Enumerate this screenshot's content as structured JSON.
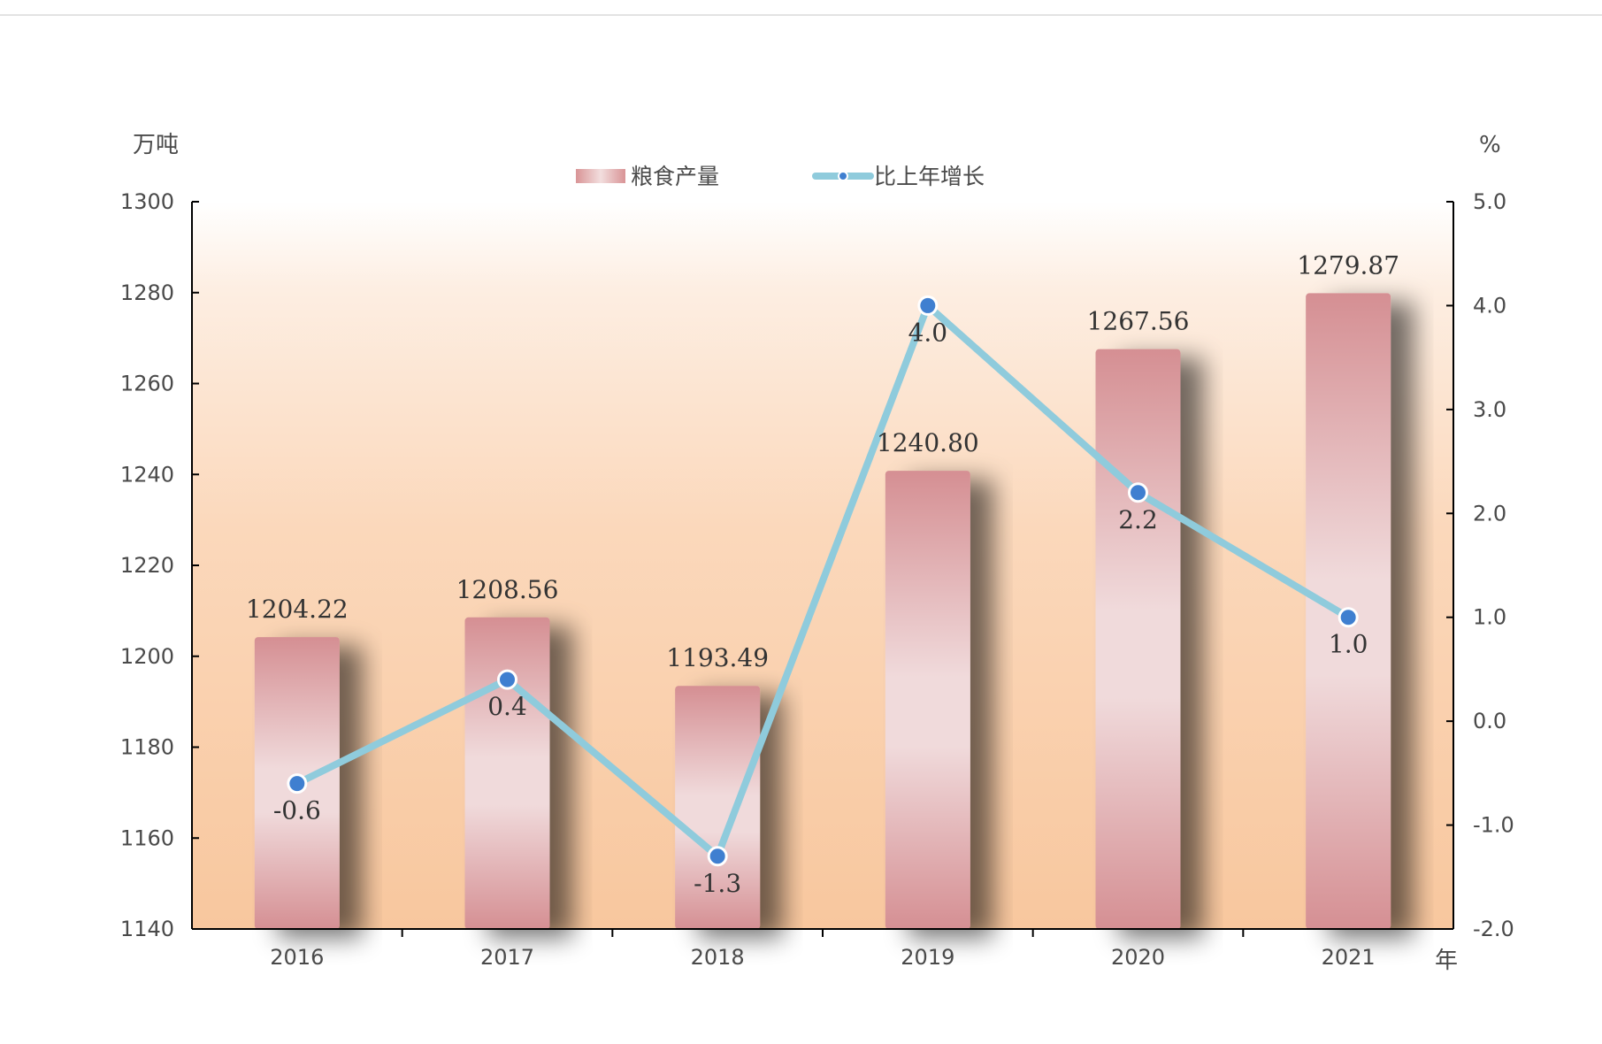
{
  "chart_data": {
    "type": "bar+line",
    "categories": [
      "2016",
      "2017",
      "2018",
      "2019",
      "2020",
      "2021"
    ],
    "x_unit": "年",
    "bar_series": {
      "name": "粮食产量",
      "unit": "万吨",
      "values": [
        1204.22,
        1208.56,
        1193.49,
        1240.8,
        1267.56,
        1279.87
      ],
      "value_labels": [
        "1204.22",
        "1208.56",
        "1193.49",
        "1240.80",
        "1267.56",
        "1279.87"
      ],
      "ylim": [
        1140,
        1300
      ],
      "ticks": [
        "1140",
        "1160",
        "1180",
        "1200",
        "1220",
        "1240",
        "1260",
        "1280",
        "1300"
      ],
      "color": "#d99496"
    },
    "line_series": {
      "name": "比上年增长",
      "unit": "%",
      "values": [
        -0.6,
        0.4,
        -1.3,
        4.0,
        2.2,
        1.0
      ],
      "value_labels": [
        "-0.6",
        "0.4",
        "-1.3",
        "4.0",
        "2.2",
        "1.0"
      ],
      "ylim": [
        -2.0,
        5.0
      ],
      "ticks": [
        "-2.0",
        "-1.0",
        "0.0",
        "1.0",
        "2.0",
        "3.0",
        "4.0",
        "5.0"
      ],
      "line_color": "#8fcbdc",
      "marker_color": "#3f7fd0"
    },
    "legend_position": "top-center",
    "plot_background": "gradient peach"
  }
}
